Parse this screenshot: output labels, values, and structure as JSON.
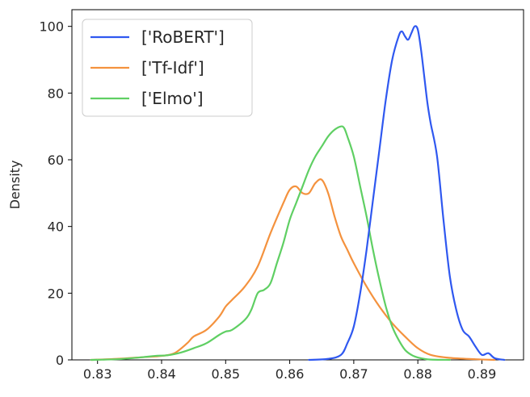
{
  "chart_data": {
    "type": "line",
    "title": "",
    "xlabel": "",
    "ylabel": "Density",
    "xlim": [
      0.826,
      0.8965
    ],
    "ylim": [
      0,
      105
    ],
    "x_ticks": [
      0.83,
      0.84,
      0.85,
      0.86,
      0.87,
      0.88,
      0.89
    ],
    "x_tick_labels": [
      "0.83",
      "0.84",
      "0.85",
      "0.86",
      "0.87",
      "0.88",
      "0.89"
    ],
    "y_ticks": [
      0,
      20,
      40,
      60,
      80,
      100
    ],
    "y_tick_labels": [
      "0",
      "20",
      "40",
      "60",
      "80",
      "100"
    ],
    "grid": false,
    "legend_position": "top-left",
    "series": [
      {
        "name": "['RoBERT']",
        "color": "#2f58f0",
        "x": [
          0.863,
          0.866,
          0.868,
          0.869,
          0.87,
          0.871,
          0.872,
          0.873,
          0.874,
          0.875,
          0.876,
          0.877,
          0.8775,
          0.878,
          0.8785,
          0.879,
          0.8795,
          0.88,
          0.8805,
          0.881,
          0.8815,
          0.882,
          0.883,
          0.884,
          0.885,
          0.886,
          0.887,
          0.888,
          0.889,
          0.89,
          0.891,
          0.892,
          0.8935
        ],
        "y": [
          0,
          0.3,
          1.5,
          5,
          10,
          20,
          33,
          48,
          63,
          78,
          90,
          97,
          98.5,
          97,
          96,
          98,
          100,
          99,
          93,
          85,
          77,
          71,
          61,
          42,
          25,
          15,
          9,
          7,
          4,
          1.5,
          2,
          0.5,
          0
        ]
      },
      {
        "name": "['Tf-Idf']",
        "color": "#f4923e",
        "x": [
          0.829,
          0.833,
          0.837,
          0.84,
          0.842,
          0.844,
          0.845,
          0.847,
          0.849,
          0.85,
          0.851,
          0.853,
          0.855,
          0.857,
          0.859,
          0.86,
          0.861,
          0.862,
          0.863,
          0.864,
          0.865,
          0.866,
          0.867,
          0.868,
          0.869,
          0.87,
          0.872,
          0.874,
          0.876,
          0.878,
          0.88,
          0.882,
          0.885,
          0.889,
          0.892
        ],
        "y": [
          0,
          0.3,
          0.8,
          1.2,
          2,
          5,
          7,
          9,
          13,
          16,
          18,
          22,
          28,
          38,
          47,
          51,
          52,
          50,
          50,
          53,
          54,
          50,
          43,
          37,
          33,
          29,
          22,
          16,
          11,
          7,
          3.5,
          1.5,
          0.6,
          0.2,
          0
        ]
      },
      {
        "name": "['Elmo']",
        "color": "#5fcf63",
        "x": [
          0.829,
          0.833,
          0.837,
          0.839,
          0.841,
          0.843,
          0.845,
          0.847,
          0.849,
          0.85,
          0.851,
          0.853,
          0.854,
          0.855,
          0.856,
          0.857,
          0.858,
          0.859,
          0.86,
          0.861,
          0.862,
          0.863,
          0.864,
          0.865,
          0.866,
          0.867,
          0.868,
          0.8685,
          0.869,
          0.87,
          0.871,
          0.872,
          0.873,
          0.874,
          0.875,
          0.876,
          0.877,
          0.878,
          0.879,
          0.88,
          0.881,
          0.882,
          0.885
        ],
        "y": [
          0,
          0.2,
          0.8,
          1.2,
          1.4,
          2.2,
          3.5,
          5,
          7.5,
          8.5,
          9,
          12,
          15,
          20,
          21,
          23,
          29,
          35,
          42,
          47,
          52,
          57,
          61,
          64,
          67,
          69,
          70,
          69.5,
          67,
          61,
          52,
          43,
          33,
          24,
          16,
          10,
          6,
          3,
          1.5,
          0.7,
          0.3,
          0.1,
          0
        ]
      }
    ]
  }
}
